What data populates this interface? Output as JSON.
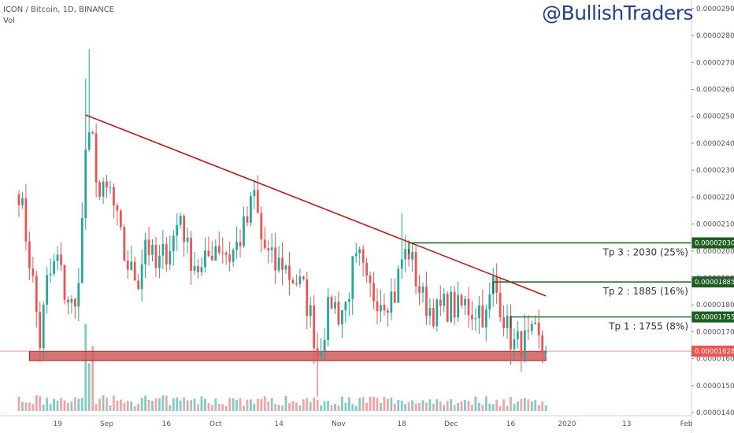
{
  "header": {
    "symbol_line": "ICON / Bitcoin, 1D, BINANCE",
    "volume_label": "Vol",
    "watermark": "@BullishTraders"
  },
  "chart_data": {
    "type": "candlestick",
    "y_axis": {
      "range": [
        1.33e-05,
        2.92e-05
      ],
      "ticks": [
        "0.00001400",
        "0.00001500",
        "0.00001600",
        "0.00001700",
        "0.00001800",
        "0.00001900",
        "0.00002000",
        "0.00002100",
        "0.00002200",
        "0.00002300",
        "0.00002400",
        "0.00002500",
        "0.00002600",
        "0.00002700",
        "0.00002800",
        "0.00002900"
      ],
      "tick_values": [
        1.4e-05,
        1.5e-05,
        1.6e-05,
        1.7e-05,
        1.8e-05,
        1.9e-05,
        2e-05,
        2.1e-05,
        2.2e-05,
        2.3e-05,
        2.4e-05,
        2.5e-05,
        2.6e-05,
        2.7e-05,
        2.8e-05,
        2.9e-05
      ],
      "side": "right"
    },
    "x_axis": {
      "ticks": [
        "19",
        "Sep",
        "16",
        "Oct",
        "14",
        "Nov",
        "18",
        "Dec",
        "16",
        "2020",
        "13",
        "Feb"
      ],
      "tick_day_index": [
        11,
        25,
        42,
        56,
        74,
        91,
        109,
        123,
        140,
        156,
        173,
        190
      ],
      "first_day_index": 0,
      "last_day_index": 191
    },
    "price_close_label": "0.00001628",
    "price_close_value": 1.628e-05,
    "colors": {
      "up": "#26a69a",
      "down": "#ef5350",
      "up_vol": "#80cbc4",
      "down_vol": "#f4a3a3",
      "trendline": "#b71c1c",
      "tp": "#1b5e20",
      "support": "#c62828"
    },
    "trendline": {
      "from": {
        "day": 19,
        "price": 2.505e-05
      },
      "to": {
        "day": 150,
        "price": 1.833e-05
      }
    },
    "support_zone": {
      "from_day": 3,
      "to_day": 150,
      "top": 1.627e-05,
      "bottom": 1.593e-05
    },
    "targets": [
      {
        "price": 2.03e-05,
        "badge": "0.00002030",
        "label": "Tp 3 : 2030 (25%)",
        "from_day": 111
      },
      {
        "price": 1.885e-05,
        "badge": "0.00001885",
        "label": "Tp 2 : 1885 (16%)",
        "from_day": 135
      },
      {
        "price": 1.755e-05,
        "badge": "0.00001755",
        "label": "Tp 1 : 1755 (8%)",
        "from_day": 140
      }
    ],
    "anchors": [
      [
        0,
        2.23e-05
      ],
      [
        2,
        2.06e-05
      ],
      [
        4,
        1.88e-05
      ],
      [
        6,
        1.66e-05
      ],
      [
        8,
        1.88e-05
      ],
      [
        11,
        1.97e-05
      ],
      [
        13,
        1.85e-05
      ],
      [
        16,
        1.77e-05
      ],
      [
        18,
        2.1e-05
      ],
      [
        19,
        2.38e-05
      ],
      [
        21,
        2.4e-05
      ],
      [
        23,
        2.2e-05
      ],
      [
        26,
        2.22e-05
      ],
      [
        28,
        2.1e-05
      ],
      [
        30,
        1.98e-05
      ],
      [
        32,
        1.92e-05
      ],
      [
        34,
        1.9e-05
      ],
      [
        36,
        2.05e-05
      ],
      [
        39,
        1.93e-05
      ],
      [
        41,
        1.98e-05
      ],
      [
        44,
        2.05e-05
      ],
      [
        46,
        2.14e-05
      ],
      [
        48,
        2e-05
      ],
      [
        50,
        1.96e-05
      ],
      [
        52,
        1.92e-05
      ],
      [
        54,
        1.98e-05
      ],
      [
        56,
        2.03e-05
      ],
      [
        58,
        2.01e-05
      ],
      [
        60,
        1.98e-05
      ],
      [
        62,
        2.02e-05
      ],
      [
        65,
        2.11e-05
      ],
      [
        67,
        2.21e-05
      ],
      [
        69,
        2.04e-05
      ],
      [
        71,
        1.98e-05
      ],
      [
        73,
        1.94e-05
      ],
      [
        75,
        1.96e-05
      ],
      [
        77,
        1.91e-05
      ],
      [
        79,
        1.89e-05
      ],
      [
        81,
        1.85e-05
      ],
      [
        83,
        1.76e-05
      ],
      [
        85,
        1.62e-05
      ],
      [
        87,
        1.72e-05
      ],
      [
        89,
        1.82e-05
      ],
      [
        91,
        1.77e-05
      ],
      [
        93,
        1.8e-05
      ],
      [
        95,
        1.93e-05
      ],
      [
        97,
        1.96e-05
      ],
      [
        99,
        1.86e-05
      ],
      [
        101,
        1.84e-05
      ],
      [
        103,
        1.83e-05
      ],
      [
        105,
        1.83e-05
      ],
      [
        107,
        1.84e-05
      ],
      [
        109,
        1.97e-05
      ],
      [
        111,
        2e-05
      ],
      [
        113,
        1.9e-05
      ],
      [
        115,
        1.82e-05
      ],
      [
        117,
        1.79e-05
      ],
      [
        119,
        1.77e-05
      ],
      [
        121,
        1.79e-05
      ],
      [
        123,
        1.8e-05
      ],
      [
        125,
        1.78e-05
      ],
      [
        127,
        1.8e-05
      ],
      [
        129,
        1.78e-05
      ],
      [
        131,
        1.79e-05
      ],
      [
        133,
        1.75e-05
      ],
      [
        135,
        1.88e-05
      ],
      [
        137,
        1.81e-05
      ],
      [
        139,
        1.71e-05
      ],
      [
        141,
        1.65e-05
      ],
      [
        143,
        1.66e-05
      ],
      [
        145,
        1.66e-05
      ],
      [
        147,
        1.68e-05
      ],
      [
        149,
        1.63e-05
      ],
      [
        150,
        1.63e-05
      ]
    ],
    "volume_spikes": [
      [
        19,
        1.0
      ],
      [
        20,
        0.55
      ],
      [
        21,
        0.75
      ],
      [
        12,
        0.15
      ],
      [
        46,
        0.12
      ],
      [
        109,
        0.12
      ],
      [
        87,
        0.11
      ]
    ],
    "grid": false,
    "legend": "none"
  }
}
